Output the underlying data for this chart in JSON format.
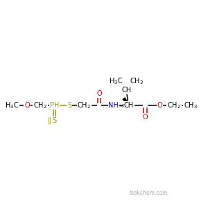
{
  "background_color": "#ffffff",
  "bond_color": "#000000",
  "atom_colors": {
    "C": "#000000",
    "H": "#000000",
    "O": "#cc0000",
    "N": "#0000cc",
    "S": "#999900",
    "P": "#999900"
  },
  "font_size": 7.0,
  "fig_size": [
    3.0,
    3.0
  ],
  "dpi": 100,
  "watermark": "lookchem.com"
}
